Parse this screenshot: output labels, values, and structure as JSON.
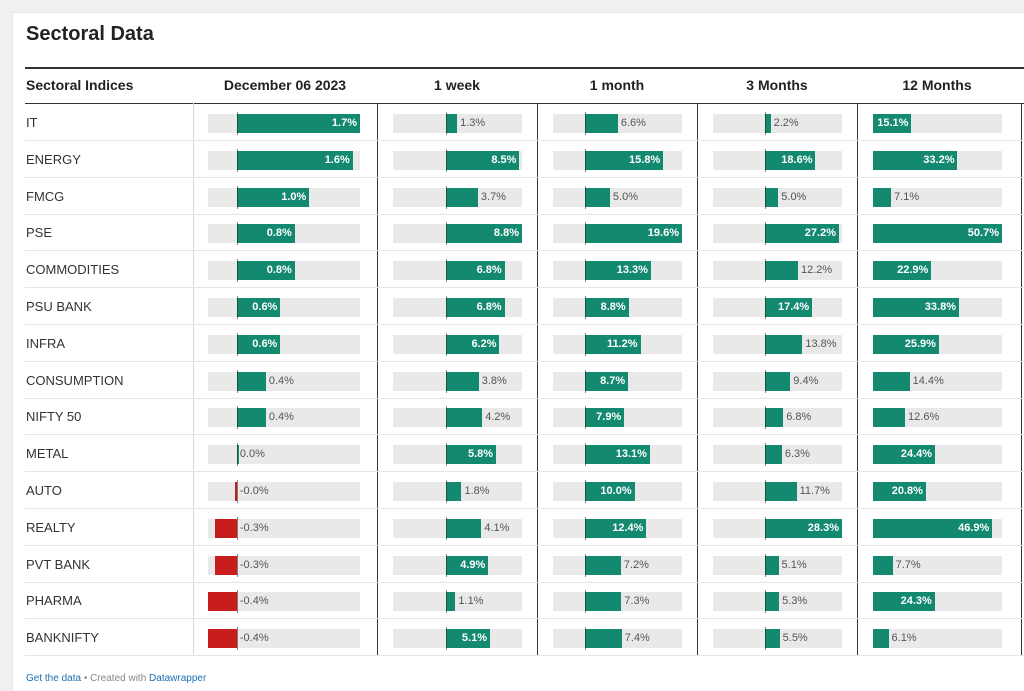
{
  "title": "Sectoral Data",
  "columns": [
    "Sectoral Indices",
    "December 06 2023",
    "1 week",
    "1 month",
    "3 Months",
    "12 Months"
  ],
  "footer": {
    "get_data_label": "Get the data",
    "separator": "•",
    "created_with_label": "Created with",
    "datawrapper_label": "Datawrapper"
  },
  "colors": {
    "positive": "#13896f",
    "negative": "#c71e1d",
    "track": "#e9e9e9"
  },
  "chart_data": {
    "type": "table",
    "unit": "%",
    "categories": [
      "IT",
      "ENERGY",
      "FMCG",
      "PSE",
      "COMMODITIES",
      "PSU BANK",
      "INFRA",
      "CONSUMPTION",
      "NIFTY 50",
      "METAL",
      "AUTO",
      "REALTY",
      "PVT BANK",
      "PHARMA",
      "BANKNIFTY"
    ],
    "series": [
      {
        "name": "December 06 2023",
        "range": [
          -0.4,
          1.7
        ],
        "values": [
          1.7,
          1.6,
          1.0,
          0.8,
          0.8,
          0.6,
          0.6,
          0.4,
          0.4,
          0.0,
          -0.0,
          -0.3,
          -0.3,
          -0.4,
          -0.4
        ],
        "labels": [
          "1.7%",
          "1.6%",
          "1.0%",
          "0.8%",
          "0.8%",
          "0.6%",
          "0.6%",
          "0.4%",
          "0.4%",
          "0.0%",
          "-0.0%",
          "-0.3%",
          "-0.3%",
          "-0.4%",
          "-0.4%"
        ]
      },
      {
        "name": "1 week",
        "range": [
          0,
          8.8
        ],
        "values": [
          1.3,
          8.5,
          3.7,
          8.8,
          6.8,
          6.8,
          6.2,
          3.8,
          4.2,
          5.8,
          1.8,
          4.1,
          4.9,
          1.1,
          5.1
        ],
        "labels": [
          "1.3%",
          "8.5%",
          "3.7%",
          "8.8%",
          "6.8%",
          "6.8%",
          "6.2%",
          "3.8%",
          "4.2%",
          "5.8%",
          "1.8%",
          "4.1%",
          "4.9%",
          "1.1%",
          "5.1%"
        ]
      },
      {
        "name": "1 month",
        "range": [
          0,
          19.6
        ],
        "values": [
          6.6,
          15.8,
          5.0,
          19.6,
          13.3,
          8.8,
          11.2,
          8.7,
          7.9,
          13.1,
          10.0,
          12.4,
          7.2,
          7.3,
          7.4
        ],
        "labels": [
          "6.6%",
          "15.8%",
          "5.0%",
          "19.6%",
          "13.3%",
          "8.8%",
          "11.2%",
          "8.7%",
          "7.9%",
          "13.1%",
          "10.0%",
          "12.4%",
          "7.2%",
          "7.3%",
          "7.4%"
        ]
      },
      {
        "name": "3 Months",
        "range": [
          0,
          28.3
        ],
        "values": [
          2.2,
          18.6,
          5.0,
          27.2,
          12.2,
          17.4,
          13.8,
          9.4,
          6.8,
          6.3,
          11.7,
          28.3,
          5.1,
          5.3,
          5.5
        ],
        "labels": [
          "2.2%",
          "18.6%",
          "5.0%",
          "27.2%",
          "12.2%",
          "17.4%",
          "13.8%",
          "9.4%",
          "6.8%",
          "6.3%",
          "11.7%",
          "28.3%",
          "5.1%",
          "5.3%",
          "5.5%"
        ]
      },
      {
        "name": "12 Months",
        "range": [
          0,
          50.7
        ],
        "values": [
          15.1,
          33.2,
          7.1,
          50.7,
          22.9,
          33.8,
          25.9,
          14.4,
          12.6,
          24.4,
          20.8,
          46.9,
          7.7,
          24.3,
          6.1
        ],
        "labels": [
          "15.1%",
          "33.2%",
          "7.1%",
          "50.7%",
          "22.9%",
          "33.8%",
          "25.9%",
          "14.4%",
          "12.6%",
          "24.4%",
          "20.8%",
          "46.9%",
          "7.7%",
          "24.3%",
          "6.1%"
        ]
      }
    ]
  }
}
